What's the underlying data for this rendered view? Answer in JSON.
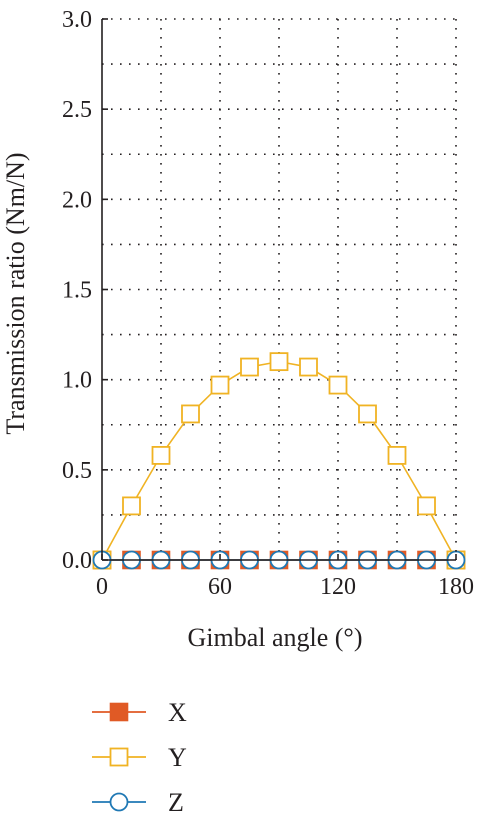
{
  "colors": {
    "X": "#e05a25",
    "Y": "#f0b323",
    "Z": "#1f78b4",
    "grid": "#231f20",
    "axis": "#231f20"
  },
  "chart_data": {
    "type": "line",
    "title": "",
    "xlabel": "Gimbal angle (°)",
    "ylabel": "Transmission ratio (Nm/N)",
    "xlim": [
      0,
      180
    ],
    "ylim": [
      0,
      3.0
    ],
    "xticks": [
      0,
      60,
      120,
      180
    ],
    "yticks": [
      0.0,
      0.5,
      1.0,
      1.5,
      2.0,
      2.5,
      3.0
    ],
    "ytick_labels": [
      "0.0",
      "0.5",
      "1.0",
      "1.5",
      "2.0",
      "2.5",
      "3.0"
    ],
    "grid": true,
    "legend_position": "below",
    "x": [
      0,
      15,
      30,
      45,
      60,
      75,
      90,
      105,
      120,
      135,
      150,
      165,
      180
    ],
    "series": [
      {
        "name": "X",
        "marker": "filled-square",
        "values": [
          0,
          0,
          0,
          0,
          0,
          0,
          0,
          0,
          0,
          0,
          0,
          0,
          0
        ]
      },
      {
        "name": "Y",
        "marker": "open-square",
        "values": [
          0,
          0.3,
          0.58,
          0.81,
          0.97,
          1.07,
          1.1,
          1.07,
          0.97,
          0.81,
          0.58,
          0.3,
          0
        ]
      },
      {
        "name": "Z",
        "marker": "open-circle",
        "values": [
          0,
          0,
          0,
          0,
          0,
          0,
          0,
          0,
          0,
          0,
          0,
          0,
          0
        ]
      }
    ]
  }
}
